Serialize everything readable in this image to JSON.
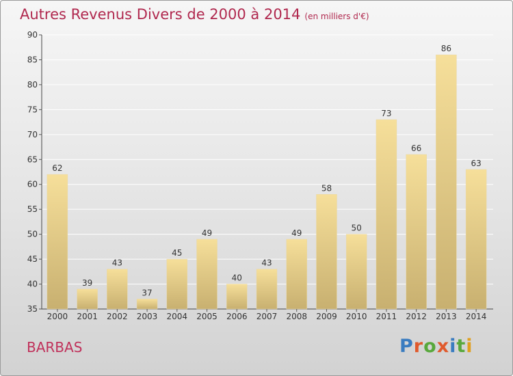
{
  "header": {
    "title": "Autres Revenus Divers de 2000 à 2014",
    "subtitle": "(en milliers d'€)"
  },
  "footer": {
    "place": "BARBAS",
    "logo": "Proxiti"
  },
  "colors": {
    "title": "#b0284e",
    "bar_top": "#f6df9a",
    "bar_bottom": "#c8b070",
    "logo": [
      "#3a7cc0",
      "#e05a2c",
      "#58a83c",
      "#e05a2c",
      "#3a7cc0",
      "#58a83c",
      "#e0a020"
    ]
  },
  "chart_data": {
    "type": "bar",
    "title": "Autres Revenus Divers de 2000 à 2014",
    "subtitle": "(en milliers d'€)",
    "categories": [
      "2000",
      "2001",
      "2002",
      "2003",
      "2004",
      "2005",
      "2006",
      "2007",
      "2008",
      "2009",
      "2010",
      "2011",
      "2012",
      "2013",
      "2014"
    ],
    "values": [
      62,
      39,
      43,
      37,
      45,
      49,
      40,
      43,
      49,
      58,
      50,
      73,
      66,
      86,
      63
    ],
    "ylim": [
      35,
      90
    ],
    "yticks": [
      35,
      40,
      45,
      50,
      55,
      60,
      65,
      70,
      75,
      80,
      85,
      90
    ],
    "grid": true,
    "legend": "none"
  }
}
